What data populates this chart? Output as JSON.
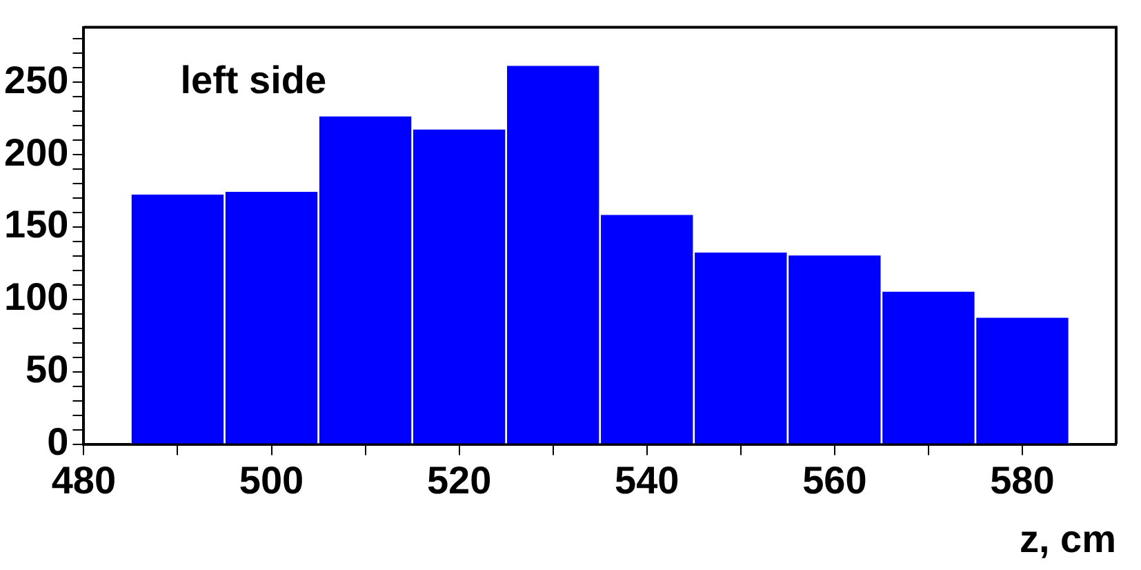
{
  "chart_data": {
    "type": "histogram",
    "xlabel": "z, cm",
    "annotations": [
      "left side"
    ],
    "bins": [
      485,
      495,
      505,
      515,
      525,
      535,
      545,
      555,
      565,
      575,
      585
    ],
    "values": [
      173,
      175,
      227,
      218,
      262,
      159,
      133,
      131,
      106,
      88
    ],
    "color": "#0000ff",
    "xlim": [
      480,
      590
    ],
    "xticks": [
      480,
      {
        "value": 490,
        "label": null
      },
      500,
      {
        "value": 510,
        "label": null
      },
      520,
      {
        "value": 530,
        "label": null
      },
      540,
      {
        "value": 550,
        "label": null
      },
      560,
      {
        "value": 570,
        "label": null
      },
      580
    ],
    "ylim": [
      0,
      288
    ],
    "yticks": [
      0,
      {
        "value": 10,
        "label": null
      },
      {
        "value": 20,
        "label": null
      },
      {
        "value": 30,
        "label": null
      },
      {
        "value": 40,
        "label": null
      },
      50,
      {
        "value": 60,
        "label": null
      },
      {
        "value": 70,
        "label": null
      },
      {
        "value": 80,
        "label": null
      },
      {
        "value": 90,
        "label": null
      },
      100,
      {
        "value": 110,
        "label": null
      },
      {
        "value": 120,
        "label": null
      },
      {
        "value": 130,
        "label": null
      },
      {
        "value": 140,
        "label": null
      },
      150,
      {
        "value": 160,
        "label": null
      },
      {
        "value": 170,
        "label": null
      },
      {
        "value": 180,
        "label": null
      },
      {
        "value": 190,
        "label": null
      },
      200,
      {
        "value": 210,
        "label": null
      },
      {
        "value": 220,
        "label": null
      },
      {
        "value": 230,
        "label": null
      },
      {
        "value": 240,
        "label": null
      },
      250,
      {
        "value": 260,
        "label": null
      },
      {
        "value": 270,
        "label": null
      },
      {
        "value": 280,
        "label": null
      }
    ],
    "grid": false,
    "legend": false
  }
}
